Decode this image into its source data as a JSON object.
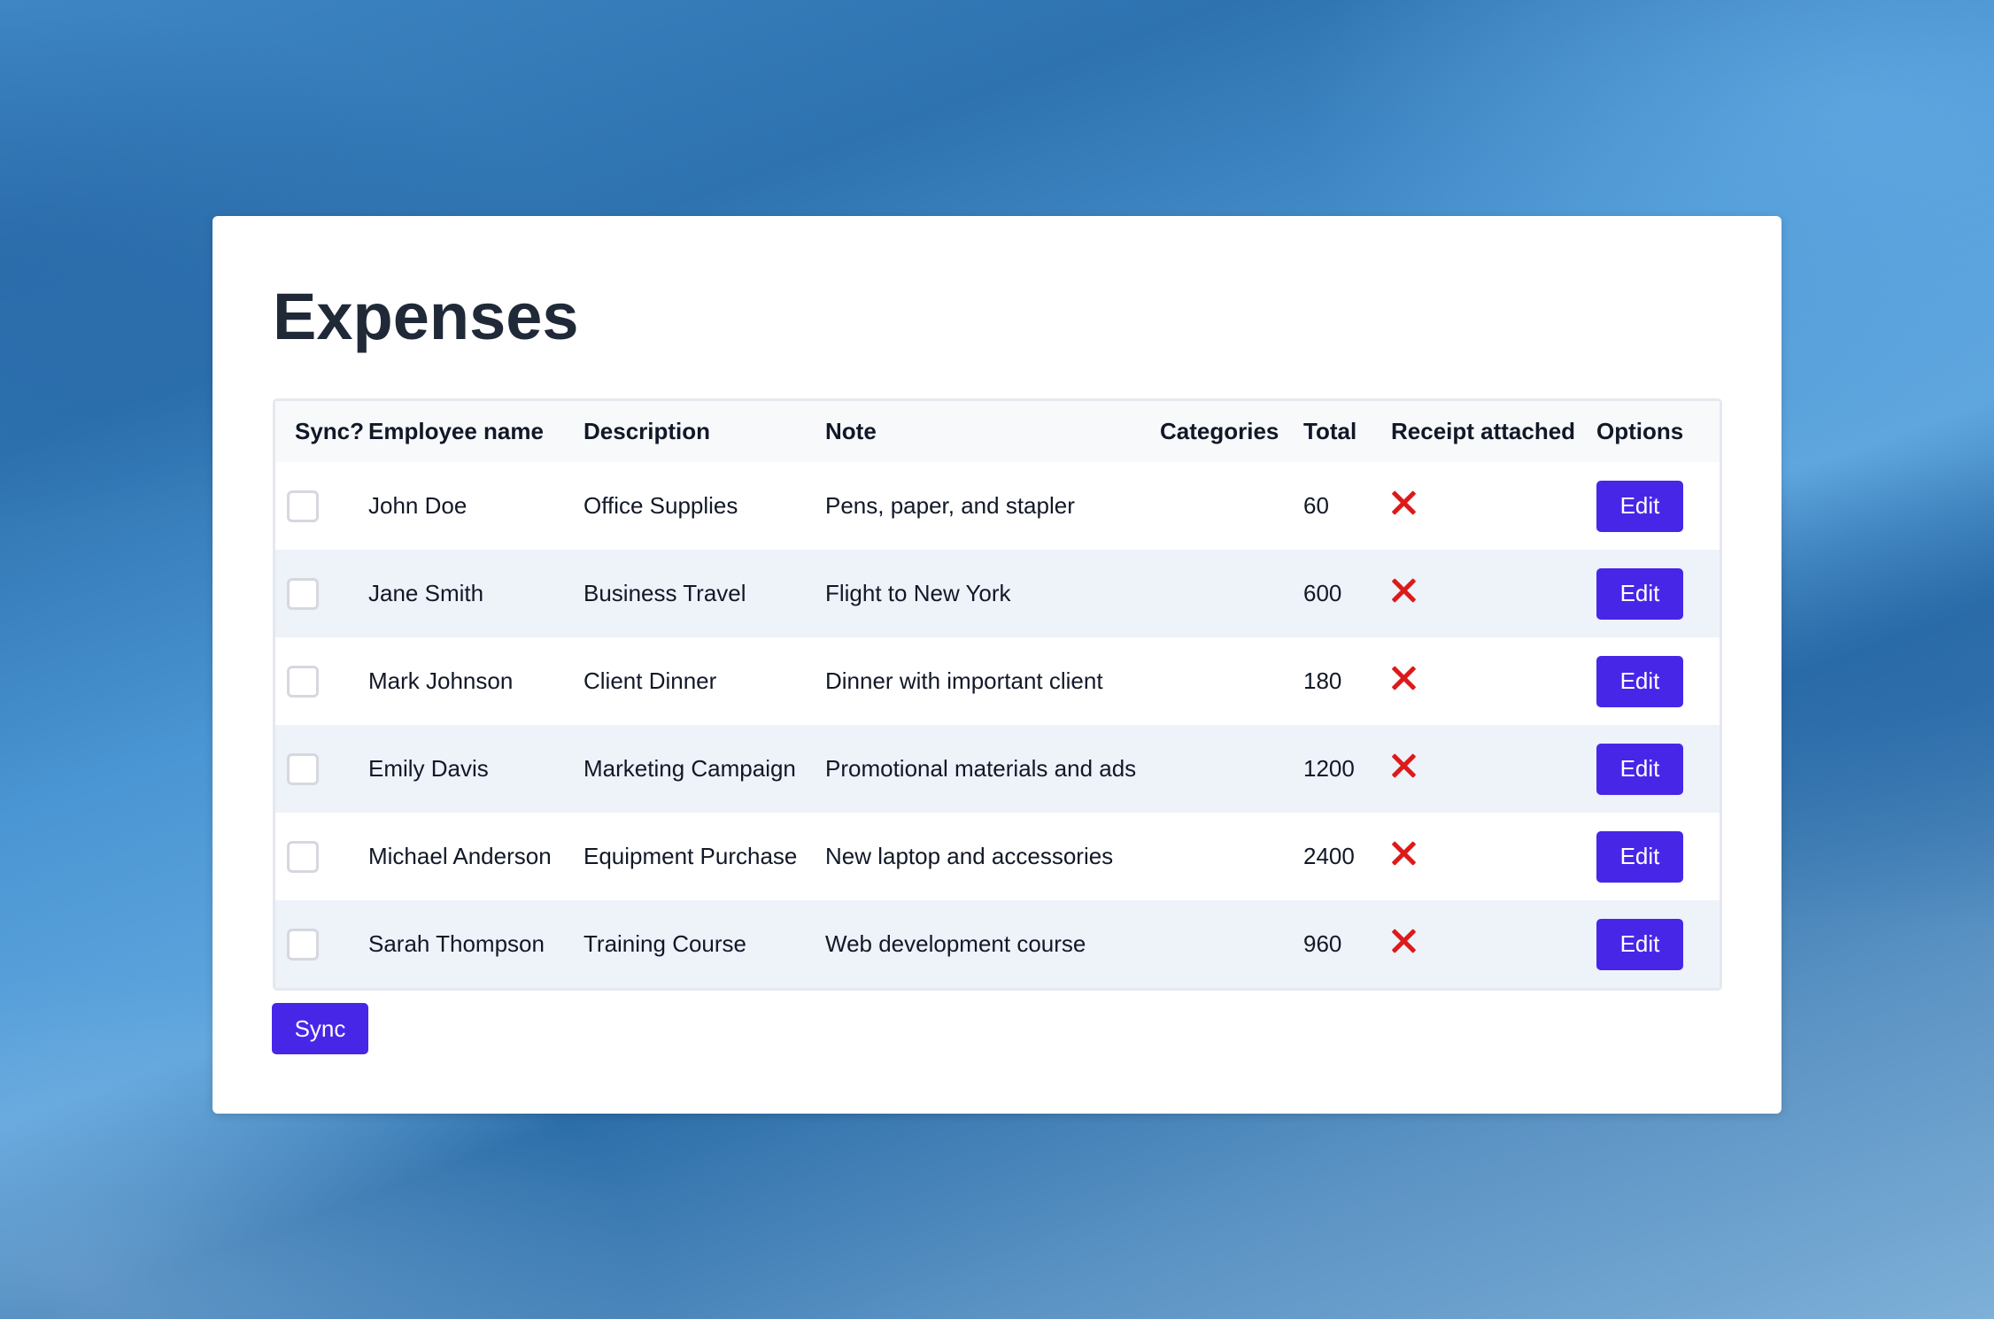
{
  "page": {
    "title": "Expenses"
  },
  "table": {
    "headers": {
      "sync": "Sync?",
      "employee": "Employee name",
      "description": "Description",
      "note": "Note",
      "categories": "Categories",
      "total": "Total",
      "receipt": "Receipt attached",
      "options": "Options"
    },
    "rows": [
      {
        "employee": "John Doe",
        "description": "Office Supplies",
        "note": "Pens, paper, and stapler",
        "categories": "",
        "total": "60",
        "receipt_attached": false,
        "receipt_icon": "x-icon",
        "option_label": "Edit",
        "checked": false
      },
      {
        "employee": "Jane Smith",
        "description": "Business Travel",
        "note": "Flight to New York",
        "categories": "",
        "total": "600",
        "receipt_attached": false,
        "receipt_icon": "x-icon",
        "option_label": "Edit",
        "checked": false
      },
      {
        "employee": "Mark Johnson",
        "description": "Client Dinner",
        "note": "Dinner with important client",
        "categories": "",
        "total": "180",
        "receipt_attached": false,
        "receipt_icon": "x-icon",
        "option_label": "Edit",
        "checked": false
      },
      {
        "employee": "Emily Davis",
        "description": "Marketing Campaign",
        "note": "Promotional materials and ads",
        "categories": "",
        "total": "1200",
        "receipt_attached": false,
        "receipt_icon": "x-icon",
        "option_label": "Edit",
        "checked": false
      },
      {
        "employee": "Michael Anderson",
        "description": "Equipment Purchase",
        "note": "New laptop and accessories",
        "categories": "",
        "total": "2400",
        "receipt_attached": false,
        "receipt_icon": "x-icon",
        "option_label": "Edit",
        "checked": false
      },
      {
        "employee": "Sarah Thompson",
        "description": "Training Course",
        "note": "Web development course",
        "categories": "",
        "total": "960",
        "receipt_attached": false,
        "receipt_icon": "x-icon",
        "option_label": "Edit",
        "checked": false
      }
    ]
  },
  "actions": {
    "sync_label": "Sync"
  },
  "colors": {
    "primary_button": "#4826e8",
    "receipt_missing": "#dc1a1a",
    "row_stripe": "#eef2f9",
    "title_text": "#1f2937"
  }
}
